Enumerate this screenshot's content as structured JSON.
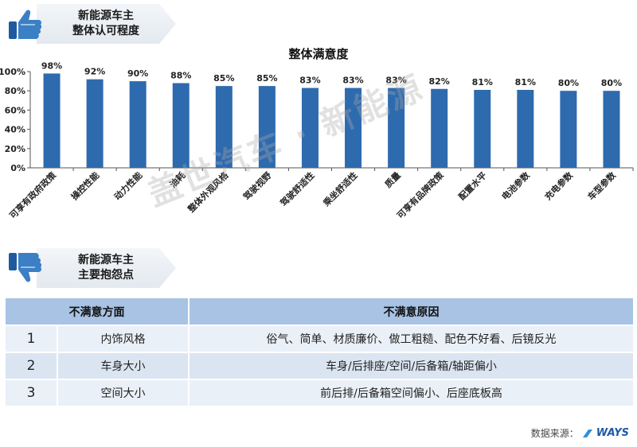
{
  "banner_top": {
    "line1": "新能源车主",
    "line2": "整体认可程度"
  },
  "banner_bottom": {
    "line1": "新能源车主",
    "line2": "主要抱怨点"
  },
  "chart_data": {
    "type": "bar",
    "title": "整体满意度",
    "categories": [
      "可享有政府政策",
      "操控性能",
      "动力性能",
      "油耗",
      "整体外观风格",
      "驾驶视野",
      "驾驶舒适性",
      "乘坐舒适性",
      "质量",
      "可享有品牌政策",
      "配置水平",
      "电池参数",
      "充电参数",
      "车型参数"
    ],
    "values": [
      98,
      92,
      90,
      88,
      85,
      85,
      83,
      83,
      83,
      82,
      81,
      81,
      80,
      80
    ],
    "value_labels": [
      "98%",
      "92%",
      "90%",
      "88%",
      "85%",
      "85%",
      "83%",
      "83%",
      "83%",
      "82%",
      "81%",
      "81%",
      "80%",
      "80%"
    ],
    "ylim": [
      0,
      100
    ],
    "yticks": [
      "0%",
      "20%",
      "40%",
      "60%",
      "80%",
      "100%"
    ],
    "bar_color": "#2e6aae",
    "grid": false,
    "legend": "none"
  },
  "watermark": "盖世汽车 · 新能源",
  "table": {
    "headers": [
      "不满意方面",
      "不满意原因"
    ],
    "rows": [
      {
        "num": "1",
        "aspect": "内饰风格",
        "reason": "俗气、简单、材质廉价、做工粗糙、配色不好看、后镜反光"
      },
      {
        "num": "2",
        "aspect": "车身大小",
        "reason": "车身/后排座/空间/后备箱/轴距偏小"
      },
      {
        "num": "3",
        "aspect": "空间大小",
        "reason": "前后排/后备箱空间偏小、后座底板高"
      }
    ]
  },
  "source": {
    "label": "数据来源：",
    "logo": "WAYS"
  },
  "colors": {
    "header_fill": "#a8c3e4",
    "row_odd": "#eaf0f7",
    "row_even": "#dbe5f1",
    "thumb_blue": "#2f6fb6"
  }
}
